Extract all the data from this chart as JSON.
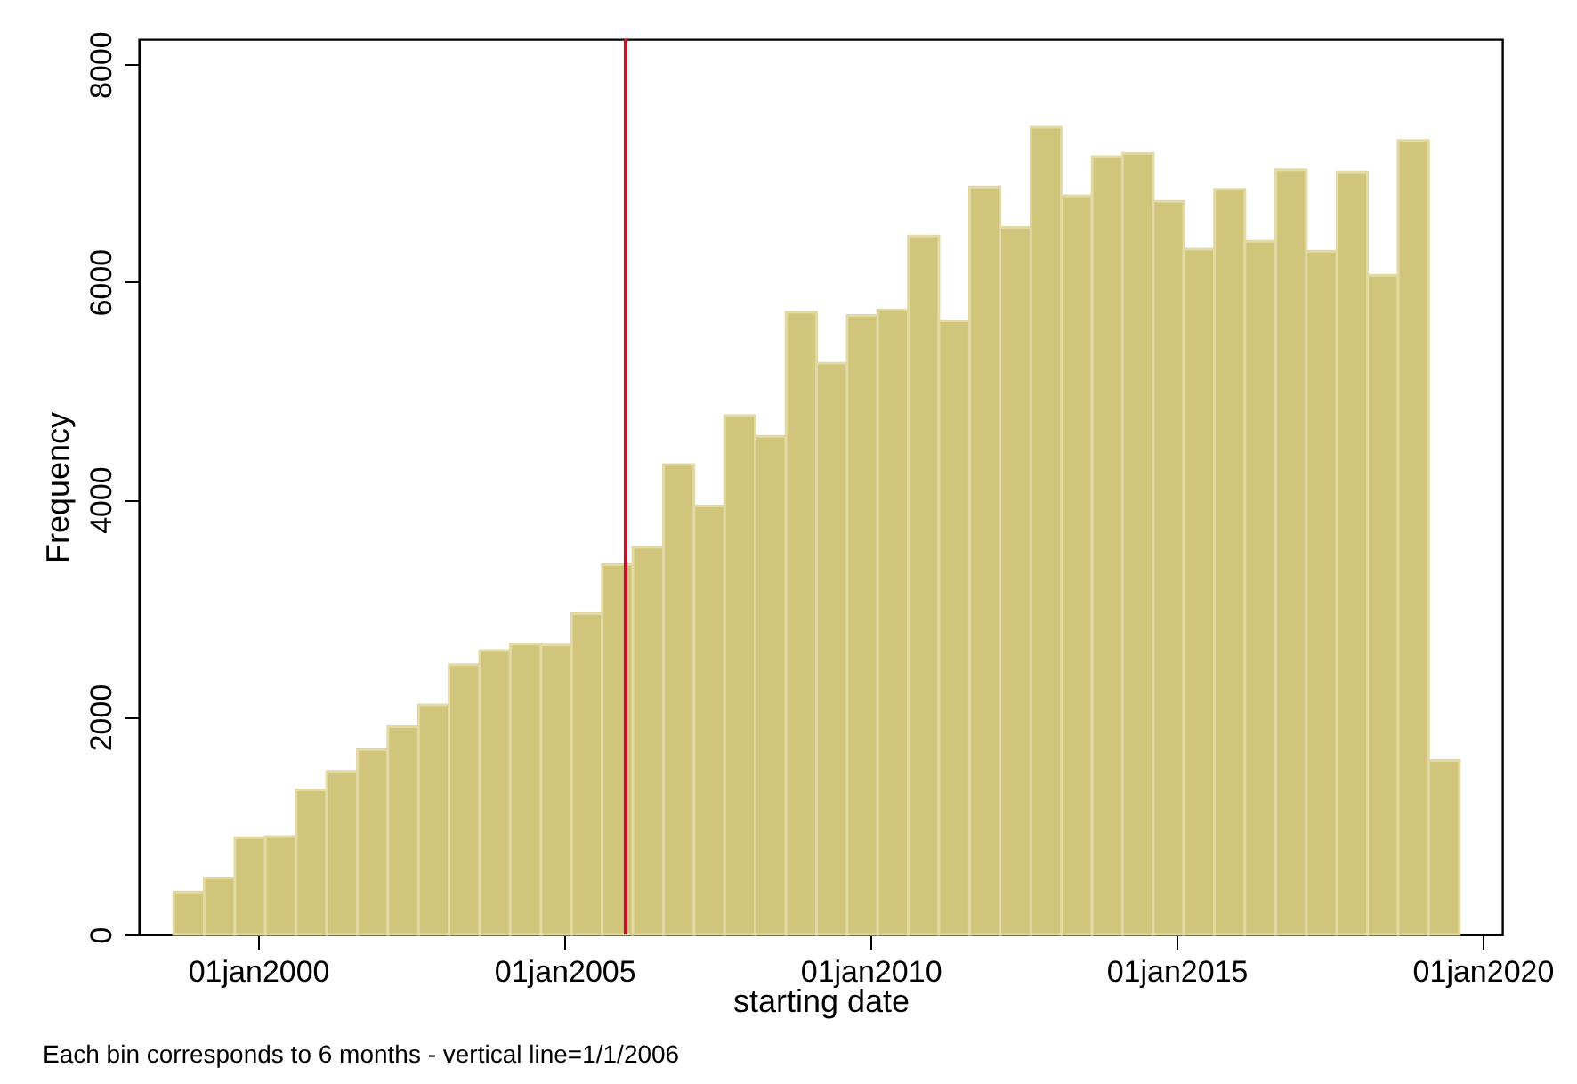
{
  "chart_data": {
    "type": "histogram",
    "xlabel": "starting date",
    "ylabel": "Frequency",
    "annotations": [
      "Each bin corresponds to 6 months - vertical line=1/1/2006"
    ],
    "bins": [
      "1998-08-15",
      "1999-02-13",
      "1999-08-15",
      "2000-02-13",
      "2000-08-15",
      "2001-02-13",
      "2001-08-15",
      "2002-02-13",
      "2002-08-15",
      "2003-02-13",
      "2003-08-15",
      "2004-02-13",
      "2004-08-15",
      "2005-02-13",
      "2005-08-15",
      "2006-02-13",
      "2006-08-15",
      "2007-02-13",
      "2007-08-15",
      "2008-02-13",
      "2008-08-15",
      "2009-02-13",
      "2009-08-15",
      "2010-02-13",
      "2010-08-15",
      "2011-02-13",
      "2011-08-15",
      "2012-02-13",
      "2012-08-15",
      "2013-02-13",
      "2013-08-15",
      "2014-02-13",
      "2014-08-15",
      "2015-02-13",
      "2015-08-15",
      "2016-02-13",
      "2016-08-15",
      "2017-02-13",
      "2017-08-15",
      "2018-02-13",
      "2018-08-15",
      "2019-02-13",
      "2019-08-15"
    ],
    "values": [
      390,
      520,
      890,
      900,
      1330,
      1500,
      1700,
      1910,
      2110,
      2480,
      2610,
      2670,
      2660,
      2950,
      3400,
      3560,
      4320,
      3940,
      4770,
      4580,
      5720,
      5250,
      5690,
      5740,
      6420,
      5640,
      6870,
      6500,
      7420,
      6790,
      7150,
      7180,
      6740,
      6300,
      6850,
      6370,
      7030,
      6280,
      7010,
      6060,
      7300,
      1600
    ],
    "color": "#d1c57c",
    "xlim": [
      "1998-01-19",
      "2020-04-27"
    ],
    "xticks": [
      {
        "value": "2000-01-01",
        "label": "01jan2000"
      },
      {
        "value": "2005-01-01",
        "label": "01jan2005"
      },
      {
        "value": "2010-01-01",
        "label": "01jan2010"
      },
      {
        "value": "2015-01-01",
        "label": "01jan2015"
      },
      {
        "value": "2020-01-01",
        "label": "01jan2020"
      }
    ],
    "ylim": [
      0,
      8230
    ],
    "yticks": [
      0,
      2000,
      4000,
      6000,
      8000
    ],
    "ref_lines": [
      {
        "axis": "x",
        "value": "2006-01-01",
        "label": null,
        "color": "#c8102e"
      }
    ],
    "grid": false
  }
}
